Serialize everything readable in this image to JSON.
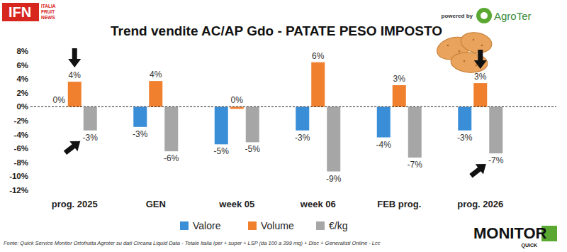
{
  "chart_data": {
    "type": "bar",
    "title": "Trend vendite AC/AP Gdo - PATATE PESO IMPOSTO",
    "categories": [
      "prog. 2025",
      "GEN",
      "week 05",
      "week 06",
      "FEB prog.",
      "prog. 2026"
    ],
    "series": [
      {
        "name": "Valore",
        "color": "#3a8ed8",
        "values": [
          0,
          -2.9,
          -5.4,
          -3.4,
          -4.4,
          -3.4
        ],
        "value_labels": [
          "0%",
          "-3%",
          "-5%",
          "-3%",
          "-4%",
          "-3%"
        ]
      },
      {
        "name": "Volume",
        "color": "#f07f2e",
        "values": [
          3.6,
          3.7,
          -0.3,
          6.4,
          3.1,
          3.4
        ],
        "value_labels": [
          "4%",
          "4%",
          "0%",
          "6%",
          "3%",
          "3%"
        ]
      },
      {
        "name": "€/kg",
        "color": "#a6a6a6",
        "values": [
          -3.4,
          -6.4,
          -5.1,
          -9.3,
          -7.3,
          -6.7
        ],
        "value_labels": [
          "-3%",
          "-6%",
          "-5%",
          "-9%",
          "-7%",
          "-7%"
        ]
      }
    ],
    "ylim": [
      -12,
      8
    ],
    "yticks": [
      {
        "value": 8,
        "label": "8%"
      },
      {
        "value": 6,
        "label": "6%"
      },
      {
        "value": 4,
        "label": "4%"
      },
      {
        "value": 2,
        "label": "2%"
      },
      {
        "value": 0,
        "label": "0%"
      },
      {
        "value": -2,
        "label": "-2%"
      },
      {
        "value": -4,
        "label": "-4%"
      },
      {
        "value": -6,
        "label": "-6%"
      },
      {
        "value": -8,
        "label": "-8%"
      },
      {
        "value": -10,
        "label": "-10%"
      },
      {
        "value": -12,
        "label": "-12%"
      }
    ],
    "grid": false,
    "legend": "bottom",
    "data_labels": true,
    "source": "Fonte: Quick Service Monitor Ortofrutta Agroter su dati Circana Liquid Data - Totale Italia Iper + super + LSP (da 100 a 399 mq) + Disc + Generalisti Online - Lcc",
    "annotations": [
      "IFN",
      "ITALIA",
      "FRUIT",
      "NEWS",
      "powered by",
      "AgroTer",
      "MONITOR",
      "QUICK"
    ]
  }
}
